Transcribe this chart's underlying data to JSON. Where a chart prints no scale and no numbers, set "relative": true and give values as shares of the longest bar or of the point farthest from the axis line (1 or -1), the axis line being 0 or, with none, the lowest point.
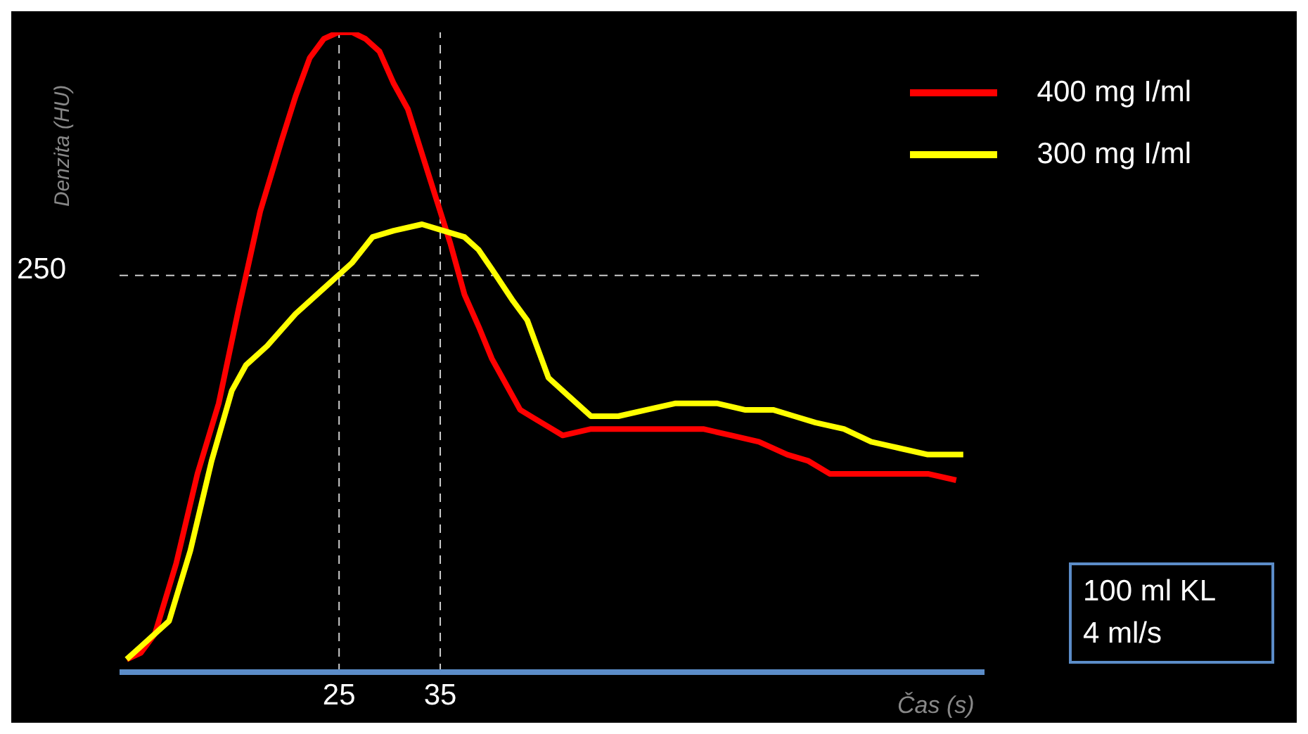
{
  "chart_data": {
    "type": "line",
    "relative": true,
    "xlabel": "Čas (s)",
    "ylabel": "Denzita (HU)",
    "xlim": [
      3.3,
      88.8
    ],
    "xticks": [
      25,
      35
    ],
    "legend": "top right",
    "marker": "none",
    "line_style": "solid",
    "ref_lines": [
      {
        "axis": "x",
        "value": 25,
        "label": null,
        "color": "#cccccc",
        "line_style": "dashed"
      },
      {
        "axis": "x",
        "value": 35,
        "label": null,
        "color": "#cccccc",
        "line_style": "dashed"
      },
      {
        "axis": "y",
        "value": 0.62,
        "label": null,
        "color": "#cccccc",
        "line_style": "dashed"
      }
    ],
    "annotations": [
      "250",
      "100 ml KL\n4 ml/s"
    ],
    "series": [
      {
        "name": "400 mg I/ml",
        "color": "#ff0000",
        "x": [
          4.0,
          5.4,
          6.8,
          8.9,
          11.0,
          13.1,
          15.1,
          17.2,
          19.3,
          20.7,
          22.1,
          23.5,
          24.9,
          26.3,
          27.6,
          29.0,
          30.4,
          31.8,
          33.2,
          34.6,
          36.0,
          37.4,
          38.8,
          40.1,
          41.5,
          42.9,
          45.0,
          47.1,
          49.9,
          52.6,
          55.4,
          58.2,
          61.0,
          63.8,
          66.5,
          69.3,
          71.4,
          73.5,
          74.9,
          77.6,
          80.4,
          83.2,
          86.0
        ],
        "values": [
          0.02,
          0.03,
          0.06,
          0.17,
          0.31,
          0.42,
          0.57,
          0.72,
          0.83,
          0.9,
          0.96,
          0.99,
          1.0,
          1.0,
          0.99,
          0.97,
          0.92,
          0.88,
          0.81,
          0.74,
          0.67,
          0.59,
          0.54,
          0.49,
          0.45,
          0.41,
          0.39,
          0.37,
          0.38,
          0.38,
          0.38,
          0.38,
          0.38,
          0.37,
          0.36,
          0.34,
          0.33,
          0.31,
          0.31,
          0.31,
          0.31,
          0.31,
          0.3
        ]
      },
      {
        "name": "300 mg I/ml",
        "color": "#ffff00",
        "x": [
          4.0,
          5.4,
          8.2,
          10.3,
          12.4,
          14.4,
          15.8,
          17.9,
          20.7,
          23.5,
          26.3,
          28.3,
          30.4,
          33.2,
          35.3,
          37.4,
          38.8,
          40.1,
          42.2,
          43.6,
          45.7,
          47.8,
          49.9,
          52.6,
          55.4,
          58.2,
          59.6,
          62.4,
          65.1,
          67.9,
          70.0,
          72.1,
          74.9,
          77.6,
          80.4,
          83.2,
          86.7
        ],
        "values": [
          0.02,
          0.04,
          0.08,
          0.19,
          0.33,
          0.44,
          0.48,
          0.51,
          0.56,
          0.6,
          0.64,
          0.68,
          0.69,
          0.7,
          0.69,
          0.68,
          0.66,
          0.63,
          0.58,
          0.55,
          0.46,
          0.43,
          0.4,
          0.4,
          0.41,
          0.42,
          0.42,
          0.42,
          0.41,
          0.41,
          0.4,
          0.39,
          0.38,
          0.36,
          0.35,
          0.34,
          0.34
        ]
      }
    ]
  }
}
